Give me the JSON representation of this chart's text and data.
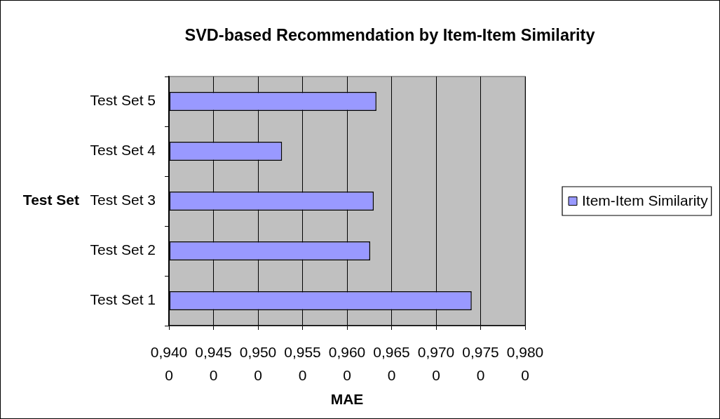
{
  "chart_data": {
    "type": "bar",
    "orientation": "horizontal",
    "title": "SVD-based Recommendation by Item-Item Similarity",
    "xlabel": "MAE",
    "ylabel": "Test Set",
    "categories": [
      "Test Set 5",
      "Test Set 4",
      "Test Set 3",
      "Test Set 2",
      "Test Set 1"
    ],
    "series": [
      {
        "name": "Item-Item Similarity",
        "color": "#9999ff",
        "values": [
          0.9633,
          0.9527,
          0.963,
          0.9626,
          0.974
        ]
      }
    ],
    "xlim": [
      0.94,
      0.98
    ],
    "xticks": [
      {
        "value": 0.94,
        "label": "0,9400"
      },
      {
        "value": 0.945,
        "label": "0,9450"
      },
      {
        "value": 0.95,
        "label": "0,9500"
      },
      {
        "value": 0.955,
        "label": "0,9550"
      },
      {
        "value": 0.96,
        "label": "0,9600"
      },
      {
        "value": 0.965,
        "label": "0,9650"
      },
      {
        "value": 0.97,
        "label": "0,9700"
      },
      {
        "value": 0.975,
        "label": "0,9750"
      },
      {
        "value": 0.98,
        "label": "0,9800"
      }
    ],
    "grid": "x",
    "legend": "right"
  }
}
